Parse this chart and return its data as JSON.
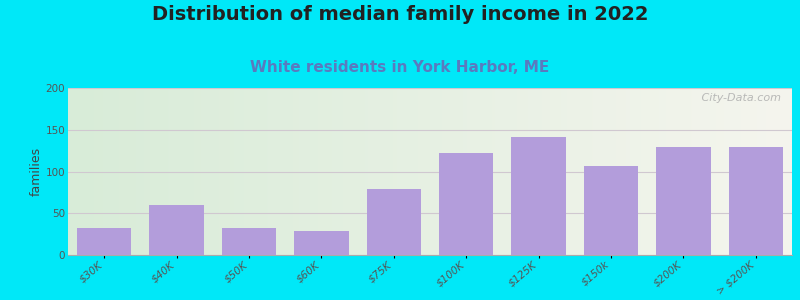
{
  "title": "Distribution of median family income in 2022",
  "subtitle": "White residents in York Harbor, ME",
  "ylabel": "families",
  "background_outer": "#00e8f8",
  "bar_color": "#b39ddb",
  "categories": [
    "$30K",
    "$40K",
    "$50K",
    "$60K",
    "$75K",
    "$100K",
    "$125K",
    "$150k",
    "$200K",
    "> $200K"
  ],
  "values": [
    32,
    60,
    32,
    29,
    79,
    122,
    142,
    107,
    130,
    130
  ],
  "ylim": [
    0,
    200
  ],
  "yticks": [
    0,
    50,
    100,
    150,
    200
  ],
  "watermark": " City-Data.com",
  "title_fontsize": 14,
  "subtitle_fontsize": 11,
  "ylabel_fontsize": 9,
  "tick_fontsize": 7.5,
  "grid_color": "#d0c8d0",
  "plot_bg_left": "#d8ecd8",
  "plot_bg_right": "#f5f5ee"
}
